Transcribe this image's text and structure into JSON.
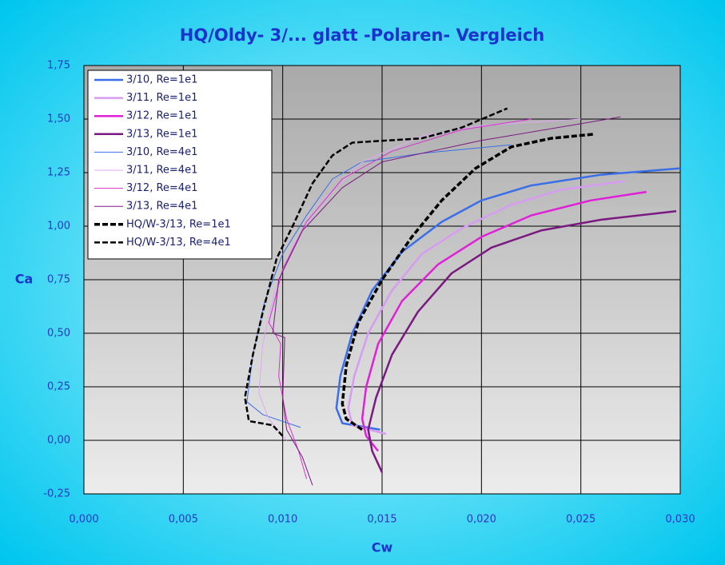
{
  "chart_data": {
    "type": "line",
    "title": "HQ/Oldy- 3/... glatt -Polaren- Vergleich",
    "x_label": "Cw",
    "y_label": "Ca",
    "xlim": [
      0,
      0.03
    ],
    "ylim": [
      -0.25,
      1.75
    ],
    "xticks": [
      {
        "value": 0,
        "label": "0,000"
      },
      {
        "value": 0.005,
        "label": "0,005"
      },
      {
        "value": 0.01,
        "label": "0,010"
      },
      {
        "value": 0.015,
        "label": "0,015"
      },
      {
        "value": 0.02,
        "label": "0,020"
      },
      {
        "value": 0.025,
        "label": "0,025"
      },
      {
        "value": 0.03,
        "label": "0,030"
      }
    ],
    "yticks": [
      {
        "value": -0.25,
        "label": "-0,25"
      },
      {
        "value": 0,
        "label": "0,00"
      },
      {
        "value": 0.25,
        "label": "0,25"
      },
      {
        "value": 0.5,
        "label": "0,50"
      },
      {
        "value": 0.75,
        "label": "0,75"
      },
      {
        "value": 1,
        "label": "1,00"
      },
      {
        "value": 1.25,
        "label": "1,25"
      },
      {
        "value": 1.5,
        "label": "1,50"
      },
      {
        "value": 1.75,
        "label": "1,75"
      }
    ],
    "grid": true,
    "legend": "upper left",
    "series": [
      {
        "name": "3/10, Re=1e1",
        "color": "#3a6ee8",
        "width": 2.5,
        "x": [
          0.0149,
          0.013,
          0.0127,
          0.0129,
          0.0135,
          0.0145,
          0.016,
          0.018,
          0.02,
          0.0225,
          0.026,
          0.03
        ],
        "values": [
          0.05,
          0.08,
          0.15,
          0.3,
          0.5,
          0.7,
          0.88,
          1.02,
          1.12,
          1.19,
          1.24,
          1.27
        ]
      },
      {
        "name": "3/11, Re=1e1",
        "color": "#d79cf2",
        "width": 2.5,
        "x": [
          0.0152,
          0.0135,
          0.0133,
          0.0136,
          0.0143,
          0.0155,
          0.017,
          0.019,
          0.0215,
          0.024,
          0.0272
        ],
        "values": [
          0.03,
          0.07,
          0.15,
          0.3,
          0.5,
          0.7,
          0.87,
          0.99,
          1.1,
          1.17,
          1.21
        ]
      },
      {
        "name": "3/12, Re=1e1",
        "color": "#e020d8",
        "width": 2.5,
        "x": [
          0.0148,
          0.0142,
          0.014,
          0.0142,
          0.0148,
          0.016,
          0.0178,
          0.02,
          0.0225,
          0.0255,
          0.0283
        ],
        "values": [
          -0.05,
          0.02,
          0.1,
          0.25,
          0.45,
          0.65,
          0.82,
          0.95,
          1.05,
          1.12,
          1.16
        ]
      },
      {
        "name": "3/13, Re=1e1",
        "color": "#7a1a80",
        "width": 2.5,
        "x": [
          0.015,
          0.0145,
          0.0143,
          0.0147,
          0.0155,
          0.0168,
          0.0185,
          0.0205,
          0.023,
          0.026,
          0.0298
        ],
        "values": [
          -0.15,
          -0.05,
          0.05,
          0.2,
          0.4,
          0.6,
          0.78,
          0.9,
          0.98,
          1.03,
          1.07
        ]
      },
      {
        "name": "3/10, Re=4e1",
        "color": "#3a6ee8",
        "width": 1,
        "x": [
          0.0109,
          0.009,
          0.0082,
          0.0085,
          0.0091,
          0.01,
          0.0112,
          0.0125,
          0.014,
          0.017,
          0.0215
        ],
        "values": [
          0.06,
          0.12,
          0.18,
          0.4,
          0.65,
          0.87,
          1.05,
          1.22,
          1.3,
          1.34,
          1.38
        ]
      },
      {
        "name": "3/11, Re=4e1",
        "color": "#e0a8f4",
        "width": 1,
        "x": [
          0.0102,
          0.0093,
          0.0088,
          0.009,
          0.0096,
          0.0106,
          0.012,
          0.014,
          0.017,
          0.02,
          0.025
        ],
        "values": [
          0,
          0.1,
          0.22,
          0.45,
          0.7,
          0.92,
          1.12,
          1.3,
          1.42,
          1.47,
          1.5
        ]
      },
      {
        "name": "3/12, Re=4e1",
        "color": "#d830d0",
        "width": 1,
        "x": [
          0.0112,
          0.0108,
          0.0102,
          0.0098,
          0.0099,
          0.0093,
          0.01,
          0.0112,
          0.013,
          0.0155,
          0.019,
          0.0225
        ],
        "values": [
          -0.18,
          -0.05,
          0.1,
          0.3,
          0.45,
          0.55,
          0.8,
          1.02,
          1.22,
          1.35,
          1.45,
          1.5
        ]
      },
      {
        "name": "3/13, Re=4e1",
        "color": "#7a1a80",
        "width": 1,
        "x": [
          0.0115,
          0.011,
          0.0102,
          0.01,
          0.0101,
          0.0095,
          0.0098,
          0.011,
          0.013,
          0.015,
          0.02,
          0.027
        ],
        "values": [
          -0.21,
          -0.08,
          0.05,
          0.2,
          0.48,
          0.5,
          0.75,
          0.98,
          1.18,
          1.3,
          1.4,
          1.51
        ]
      },
      {
        "name": "HQ/W-3/13, Re=1e1",
        "color": "#000000",
        "width": 3.5,
        "dash": "7 3",
        "x": [
          0.014,
          0.0132,
          0.013,
          0.0132,
          0.0138,
          0.015,
          0.0165,
          0.018,
          0.0197,
          0.0215,
          0.0235,
          0.0257
        ],
        "values": [
          0.05,
          0.1,
          0.17,
          0.35,
          0.55,
          0.75,
          0.95,
          1.12,
          1.27,
          1.37,
          1.41,
          1.43
        ]
      },
      {
        "name": "HQ/W-3/13, Re=4e1",
        "color": "#000000",
        "width": 2.5,
        "dash": "7 3",
        "x": [
          0.01,
          0.0095,
          0.0083,
          0.0081,
          0.0085,
          0.009,
          0.0097,
          0.0105,
          0.0115,
          0.0125,
          0.0135,
          0.017,
          0.019,
          0.0213
        ],
        "values": [
          0.02,
          0.07,
          0.09,
          0.2,
          0.4,
          0.6,
          0.85,
          1,
          1.2,
          1.33,
          1.39,
          1.41,
          1.46,
          1.55
        ]
      }
    ]
  }
}
